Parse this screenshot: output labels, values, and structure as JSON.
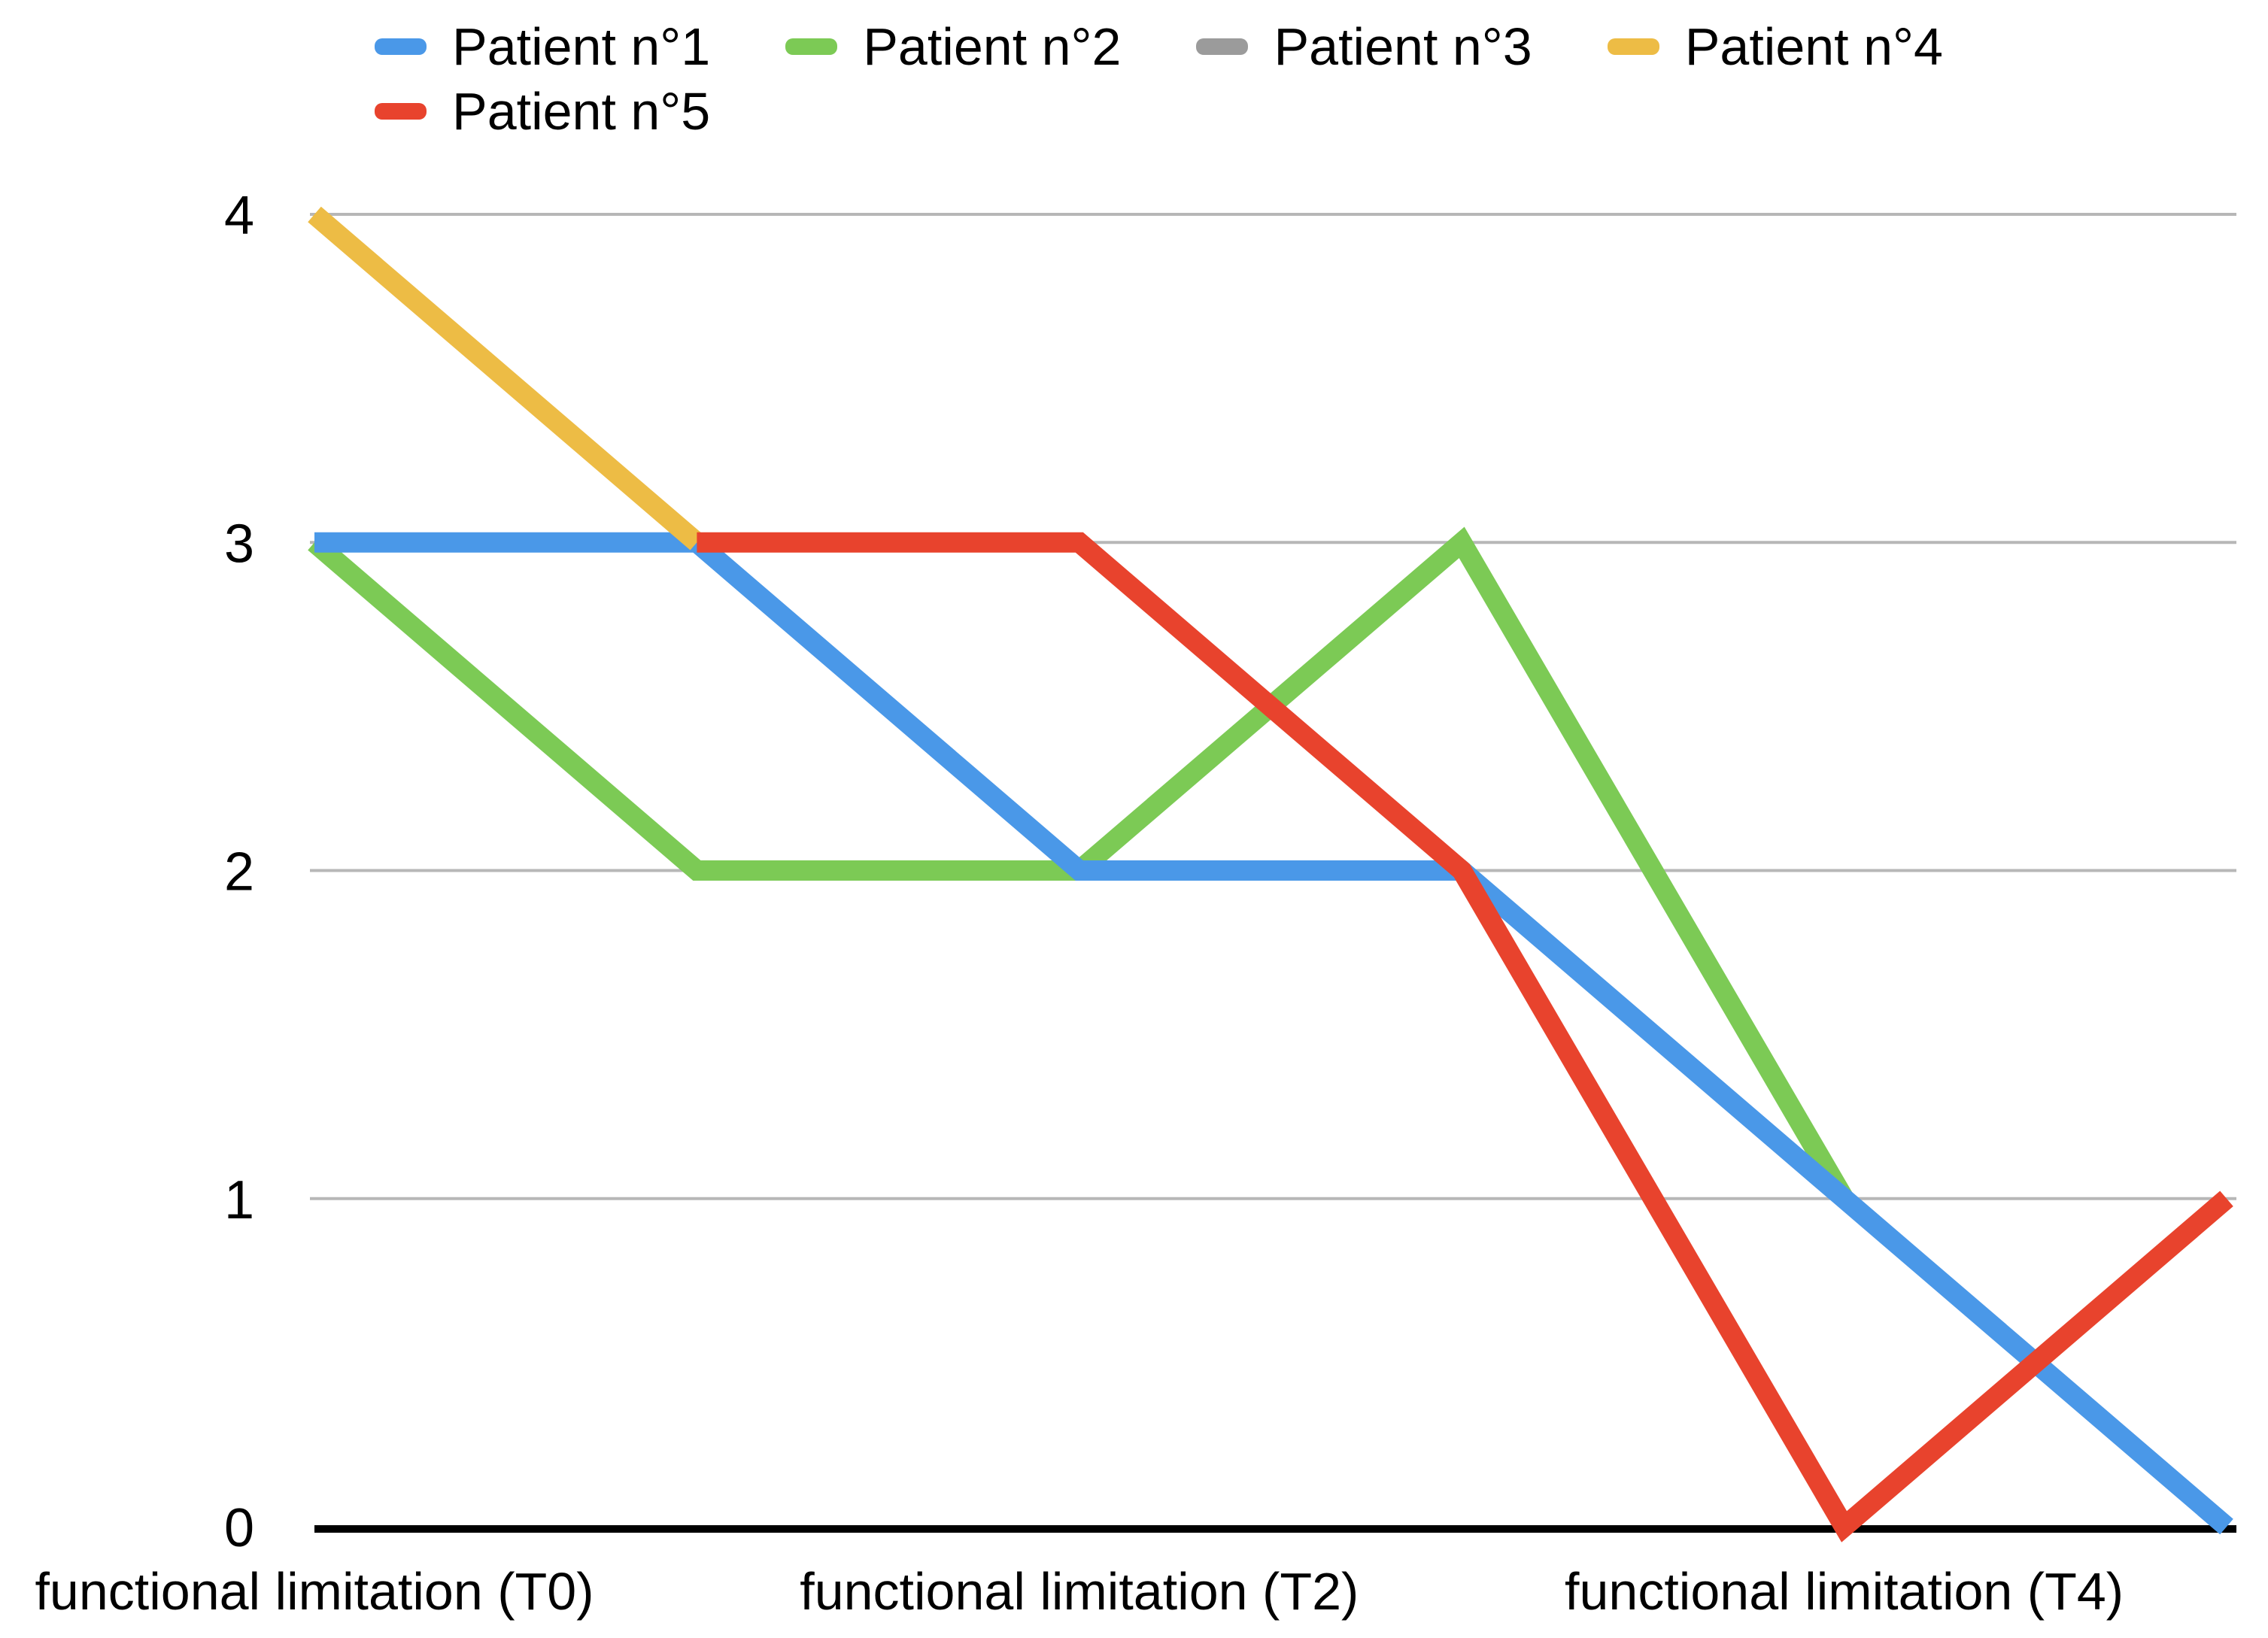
{
  "chart_data": {
    "type": "line",
    "title": "",
    "xlabel": "",
    "ylabel": "",
    "ylim": [
      0,
      4
    ],
    "y_ticks": [
      0,
      1,
      2,
      3,
      4
    ],
    "num_categories": 6,
    "x_tick_labels": [
      {
        "position": 0,
        "text": "functional limitation (T0)"
      },
      {
        "position": 2,
        "text": "functional limitation (T2)"
      },
      {
        "position": 4,
        "text": "functional limitation (T4)"
      }
    ],
    "grid": "horizontal",
    "legend_position": "top",
    "series": [
      {
        "name": "Patient n°1",
        "color": "#4a98e8",
        "values": [
          3,
          3,
          2,
          2,
          1,
          0
        ]
      },
      {
        "name": "Patient n°2",
        "color": "#7cca55",
        "values": [
          3,
          2,
          2,
          3,
          1,
          null
        ]
      },
      {
        "name": "Patient n°3",
        "color": "#9b9b9b",
        "values": [
          null,
          null,
          null,
          null,
          null,
          null
        ]
      },
      {
        "name": "Patient n°4",
        "color": "#edbc45",
        "values": [
          4,
          3,
          null,
          null,
          null,
          null
        ]
      },
      {
        "name": "Patient n°5",
        "color": "#e8432d",
        "values": [
          null,
          3,
          3,
          2,
          0,
          1
        ]
      }
    ],
    "colors": {
      "gridline": "#b7b7b7",
      "axis_baseline": "#000000",
      "text": "#000000",
      "background": "#ffffff"
    }
  }
}
